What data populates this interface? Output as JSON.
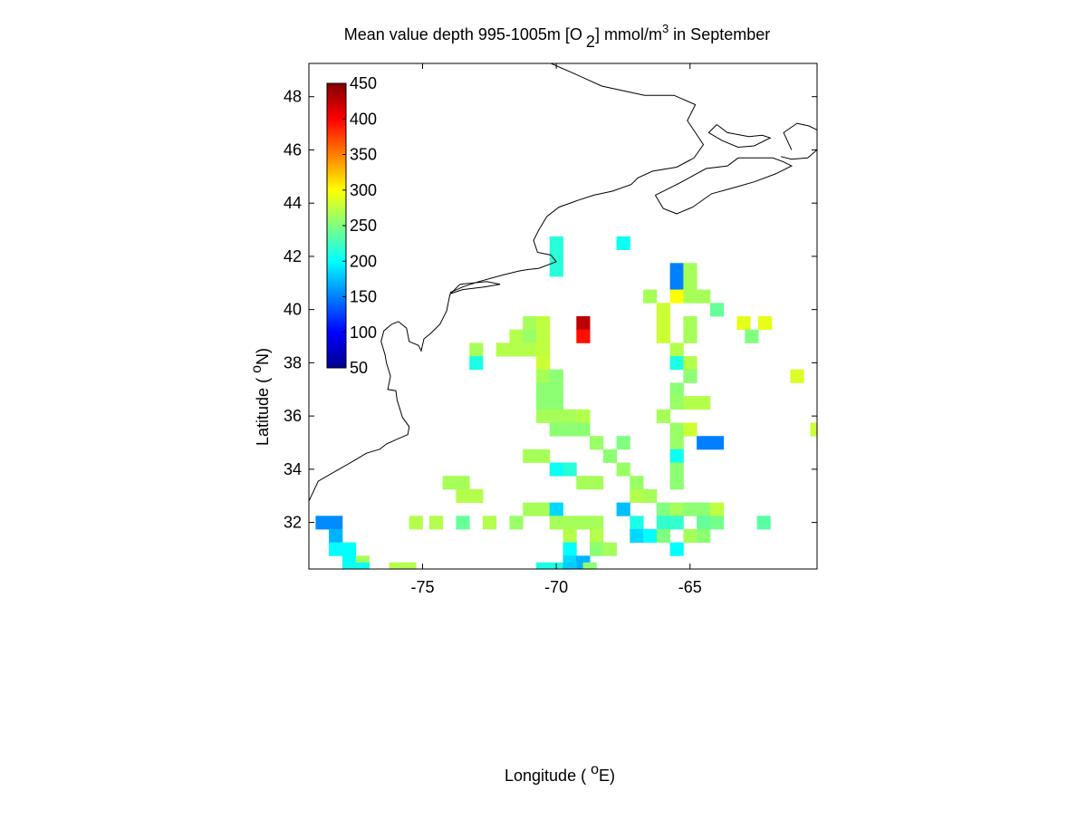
{
  "chart_data": {
    "type": "heatmap",
    "title_parts": {
      "main": "Mean value depth 995-1005m [O",
      "sub": "2",
      "units": "] mmol/m",
      "sup": "3",
      "tail": " in September"
    },
    "xlabel": {
      "pre": "Longitude ( ",
      "sup": "o",
      "post": "E)"
    },
    "ylabel": {
      "pre": "Latitude ( ",
      "sup": "o",
      "post": "N)"
    },
    "xlim": [
      -79.25,
      -60.25
    ],
    "ylim": [
      30.25,
      49.25
    ],
    "xticks": [
      -75,
      -70,
      -65
    ],
    "yticks": [
      32,
      34,
      36,
      38,
      40,
      42,
      44,
      46,
      48
    ],
    "cell_size_deg": 0.5,
    "colorbar": {
      "colormap": "jet",
      "range": [
        50,
        450
      ],
      "ticks": [
        50,
        100,
        150,
        200,
        250,
        300,
        350,
        400,
        450
      ]
    },
    "cells": [
      [
        -70,
        42.5,
        215
      ],
      [
        -70,
        42,
        215
      ],
      [
        -70,
        41.5,
        215
      ],
      [
        -67.5,
        42.5,
        205
      ],
      [
        -65.5,
        41.5,
        150
      ],
      [
        -65.5,
        41,
        150
      ],
      [
        -65,
        41.5,
        265
      ],
      [
        -65,
        41,
        265
      ],
      [
        -66.5,
        40.5,
        265
      ],
      [
        -65.5,
        40.5,
        300
      ],
      [
        -65,
        40.5,
        265
      ],
      [
        -64.5,
        40.5,
        265
      ],
      [
        -69,
        39.5,
        425
      ],
      [
        -69,
        39,
        395
      ],
      [
        -71,
        39.5,
        265
      ],
      [
        -70.5,
        39.5,
        275
      ],
      [
        -71.5,
        39,
        270
      ],
      [
        -71,
        39,
        260
      ],
      [
        -70.5,
        39,
        275
      ],
      [
        -66,
        40,
        280
      ],
      [
        -66,
        39.5,
        280
      ],
      [
        -66,
        39,
        280
      ],
      [
        -65,
        39.5,
        265
      ],
      [
        -65,
        39,
        265
      ],
      [
        -64,
        40,
        240
      ],
      [
        -63,
        39.5,
        290
      ],
      [
        -62.2,
        39.5,
        290
      ],
      [
        -62.7,
        39,
        250
      ],
      [
        -73,
        38.5,
        265
      ],
      [
        -72,
        38.5,
        270
      ],
      [
        -71.5,
        38.5,
        270
      ],
      [
        -71,
        38.5,
        270
      ],
      [
        -70.5,
        38.5,
        275
      ],
      [
        -73,
        38,
        210
      ],
      [
        -70.5,
        38,
        280
      ],
      [
        -70.5,
        37.5,
        265
      ],
      [
        -65.5,
        38.5,
        270
      ],
      [
        -65.5,
        38,
        210
      ],
      [
        -65,
        38,
        270
      ],
      [
        -65,
        37.5,
        255
      ],
      [
        -61,
        37.5,
        285
      ],
      [
        -70,
        37.5,
        255
      ],
      [
        -70.5,
        37,
        255
      ],
      [
        -70,
        37,
        255
      ],
      [
        -70.5,
        36.5,
        255
      ],
      [
        -70,
        36.5,
        255
      ],
      [
        -65.5,
        37,
        255
      ],
      [
        -65.5,
        36.5,
        260
      ],
      [
        -65,
        36.5,
        270
      ],
      [
        -64.5,
        36.5,
        270
      ],
      [
        -70.5,
        36,
        265
      ],
      [
        -70,
        36,
        265
      ],
      [
        -69.5,
        36,
        265
      ],
      [
        -69,
        36,
        270
      ],
      [
        -66,
        36,
        265
      ],
      [
        -65.5,
        35.5,
        260
      ],
      [
        -65,
        35.5,
        280
      ],
      [
        -70,
        35.5,
        255
      ],
      [
        -69.5,
        35.5,
        255
      ],
      [
        -69,
        35.5,
        255
      ],
      [
        -60.25,
        35.5,
        280
      ],
      [
        -67.5,
        35,
        250
      ],
      [
        -68.5,
        35,
        260
      ],
      [
        -65.5,
        35,
        260
      ],
      [
        -64.5,
        35,
        150
      ],
      [
        -64,
        35,
        150
      ],
      [
        -71,
        34.5,
        265
      ],
      [
        -70.5,
        34.5,
        265
      ],
      [
        -68,
        34.5,
        255
      ],
      [
        -65.5,
        34.5,
        205
      ],
      [
        -70,
        34,
        205
      ],
      [
        -69.5,
        34,
        215
      ],
      [
        -67.5,
        34,
        260
      ],
      [
        -65.5,
        34,
        255
      ],
      [
        -74,
        33.5,
        265
      ],
      [
        -73.5,
        33.5,
        265
      ],
      [
        -69,
        33.5,
        265
      ],
      [
        -68.5,
        33.5,
        265
      ],
      [
        -65.5,
        33.5,
        255
      ],
      [
        -67,
        33.5,
        260
      ],
      [
        -73.5,
        33,
        270
      ],
      [
        -73,
        33,
        270
      ],
      [
        -67,
        33,
        270
      ],
      [
        -66.5,
        33,
        265
      ],
      [
        -71,
        32.5,
        265
      ],
      [
        -70.5,
        32.5,
        265
      ],
      [
        -70,
        32.5,
        185
      ],
      [
        -67.5,
        32.5,
        175
      ],
      [
        -66,
        32.5,
        250
      ],
      [
        -65.5,
        32.5,
        265
      ],
      [
        -65,
        32.5,
        255
      ],
      [
        -64.5,
        32.5,
        255
      ],
      [
        -64,
        32.5,
        275
      ],
      [
        -78.75,
        32,
        155
      ],
      [
        -78.25,
        32,
        155
      ],
      [
        -75.25,
        32,
        270
      ],
      [
        -74.5,
        32,
        270
      ],
      [
        -73.5,
        32,
        240
      ],
      [
        -72.5,
        32,
        270
      ],
      [
        -71.5,
        32,
        260
      ],
      [
        -70,
        32,
        265
      ],
      [
        -69.5,
        32,
        265
      ],
      [
        -69,
        32,
        265
      ],
      [
        -68.5,
        32,
        265
      ],
      [
        -67,
        32,
        210
      ],
      [
        -66,
        32,
        220
      ],
      [
        -65.5,
        32,
        220
      ],
      [
        -64.5,
        32,
        240
      ],
      [
        -64,
        32,
        245
      ],
      [
        -62.25,
        32,
        235
      ],
      [
        -78.25,
        31.5,
        170
      ],
      [
        -69.5,
        31.5,
        270
      ],
      [
        -68.5,
        31.5,
        270
      ],
      [
        -67,
        31.5,
        185
      ],
      [
        -66.5,
        31.5,
        200
      ],
      [
        -66,
        31.5,
        250
      ],
      [
        -65,
        31.5,
        265
      ],
      [
        -64.5,
        31.5,
        255
      ],
      [
        -78.25,
        31,
        200
      ],
      [
        -77.75,
        31,
        200
      ],
      [
        -69.5,
        31,
        200
      ],
      [
        -68.5,
        31,
        255
      ],
      [
        -68,
        31,
        265
      ],
      [
        -65.5,
        31,
        200
      ],
      [
        -77.75,
        30.5,
        200
      ],
      [
        -77.25,
        30.5,
        265
      ],
      [
        -69.5,
        30.5,
        185
      ],
      [
        -69,
        30.5,
        170
      ],
      [
        -77.75,
        30.25,
        205
      ],
      [
        -77.25,
        30.25,
        205
      ],
      [
        -76,
        30.25,
        270
      ],
      [
        -75.5,
        30.25,
        270
      ],
      [
        -70.5,
        30.25,
        210
      ],
      [
        -70,
        30.25,
        210
      ],
      [
        -69.5,
        30.25,
        180
      ],
      [
        -68.75,
        30.25,
        255
      ]
    ],
    "coastlines": [
      "-79.25,32.8 -78.9,33.55 -78.3,33.9 -77.6,34.3 -77.1,34.6 -76.6,34.75 -76.35,34.95 -75.9,35.15 -75.55,35.3 -75.5,35.6 -75.75,35.95 -75.95,36.6 -76.0,36.95 -76.3,37.0 -76.2,37.5 -76.35,38.0 -76.4,38.3 -76.55,38.8 -76.45,39.2 -76.15,39.45 -75.9,39.55 -75.6,39.3 -75.5,38.8 -75.15,38.65 -75.05,38.45 -74.95,38.9 -74.7,39.1 -74.35,39.45 -74.1,39.95 -74.0,40.45 -73.95,40.65 -73.5,40.85 -72.9,41.05 -72.0,41.3 -71.4,41.45 -71.1,41.5 -70.65,41.55 -70.0,41.8 -70.2,42.05 -70.7,42.15 -70.85,42.6 -70.65,43.0 -70.35,43.5 -69.9,43.85 -69.2,44.1 -68.6,44.3 -67.9,44.45 -67.2,44.7 -66.95,44.95 -66.4,45.2 -65.5,45.35 -64.85,45.7 -64.5,46.2 -64.8,46.65 -65.1,47.1 -64.8,47.7 -65.6,48.05 -66.7,48.05 -68.3,48.4 -69.4,48.9 -70.2,49.25",
      "-66.3,44.3 -65.4,44.75 -64.4,45.3 -63.6,45.4 -63.2,45.7 -62.6,45.7 -61.9,45.7 -61.5,45.55 -61.2,45.4 -61.8,45.1 -62.6,44.8 -63.3,44.6 -64.2,44.35 -64.9,43.85 -65.5,43.6 -66.0,43.8 -66.3,44.3",
      "-64.0,46.95 -63.6,46.65 -62.8,46.5 -62.3,46.55 -62.0,46.45 -62.6,46.15 -63.2,46.1 -63.8,46.35 -64.3,46.65 -64.0,46.95",
      "-61.6,45.75 -61.2,45.65 -60.6,45.7 -60.25,46.0",
      "-61.2,46.0 -61.5,46.65 -61.0,47.0 -60.55,46.9 -60.25,46.75",
      "-72.1,40.95 -72.7,40.85 -73.5,40.75 -73.95,40.6 -73.6,40.95 -72.6,41.05 -72.1,40.95"
    ]
  }
}
